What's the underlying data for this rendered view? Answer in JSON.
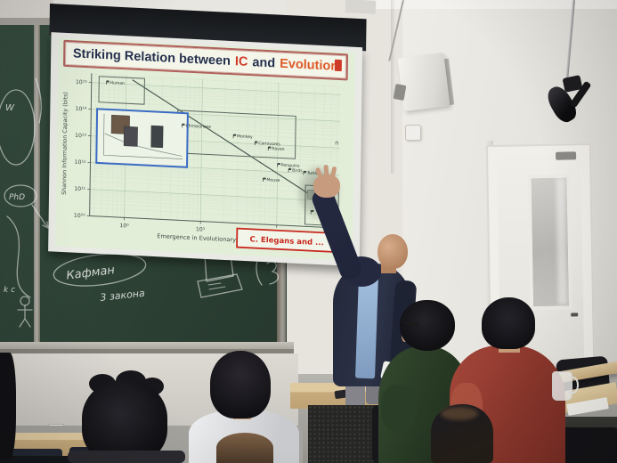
{
  "slide": {
    "title_part1": "Striking Relation between",
    "title_ic": "IC",
    "title_and": "and",
    "title_evolution": "Evolution"
  },
  "chalkboard": {
    "letter_w": "W",
    "phd": "PhD",
    "letters_kc": "k c",
    "circled_name": "Кафман",
    "note_line": "3 закона"
  },
  "colors": {
    "title_text": "#25304d",
    "title_ic": "#cf3a27",
    "title_evolution": "#dd5a28",
    "banner_border": "#b0615c",
    "banner_bg": "#f4f6ea",
    "slide_bg": "#e3eed9",
    "inset_border": "#3a6bc4",
    "caption_red": "#c8281e",
    "chalkboard_green": "#33493c"
  },
  "chart_data": {
    "type": "scatter",
    "title": "Striking Relation between IC and Evolution",
    "xlabel": "Emergence in Evolutionary Time (MYA)",
    "ylabel": "Shannon Information Capacity (bits)",
    "x_scale": "log",
    "y_scale": "log",
    "xlim": [
      0.35,
      650
    ],
    "ylim": [
      10000000000.0,
      2200000000000000.0
    ],
    "grid": true,
    "x_ticks": [
      {
        "v": 1,
        "label": "10⁰"
      },
      {
        "v": 10,
        "label": "10¹"
      },
      {
        "v": 100,
        "label": "10²"
      }
    ],
    "y_ticks": [
      {
        "v": 10000000000.0,
        "label": "10¹⁰"
      },
      {
        "v": 100000000000.0,
        "label": "10¹¹"
      },
      {
        "v": 1000000000000.0,
        "label": "10¹²"
      },
      {
        "v": 10000000000000.0,
        "label": "10¹³"
      },
      {
        "v": 100000000000000.0,
        "label": "10¹⁴"
      },
      {
        "v": 1000000000000000.0,
        "label": "10¹⁵"
      }
    ],
    "points": [
      {
        "label": "Human",
        "x": 0.55,
        "y": 900000000000000.0
      },
      {
        "label": "Chimpanzee",
        "x": 5.5,
        "y": 30000000000000.0
      },
      {
        "label": "Monkey",
        "x": 26,
        "y": 15000000000000.0
      },
      {
        "label": "Carnivores",
        "x": 50,
        "y": 9000000000000.0
      },
      {
        "label": "Raven",
        "x": 75,
        "y": 6000000000000.0
      },
      {
        "label": "Penguins",
        "x": 100,
        "y": 1500000000000.0
      },
      {
        "label": "Birds",
        "x": 140,
        "y": 1000000000000.0
      },
      {
        "label": "Turtle",
        "x": 220,
        "y": 850000000000.0
      },
      {
        "label": "Mouse",
        "x": 65,
        "y": 400000000000.0
      },
      {
        "label": "C. elegans",
        "x": 280,
        "y": 30000000000.0,
        "label_hidden": true
      }
    ],
    "trend_line": {
      "from": [
        1.2,
        1500000000000000.0
      ],
      "to": [
        440,
        70000000000.0
      ]
    },
    "boxes": [
      {
        "x0": 0.44,
        "x1": 1.74,
        "y0": 190000000000000.0,
        "y1": 1750000000000000.0
      },
      {
        "x0": 4.8,
        "x1": 170,
        "y0": 3300000000000.0,
        "y1": 130000000000000.0
      },
      {
        "x0": 235,
        "x1": 640,
        "y0": 12000000000.0,
        "y1": 350000000000.0
      }
    ],
    "inset": {
      "x0": 0.42,
      "x1": 6.5,
      "y0": 1000000000000.0,
      "y1": 105000000000000.0,
      "border_color": "#3a6bc4"
    },
    "image_marks": [
      {
        "x": 300,
        "y": 160000000000.0,
        "w": 14,
        "h": 10
      }
    ],
    "annotations": [
      {
        "text": "n",
        "x": 560,
        "y": 13000000000000.0
      }
    ],
    "caption": {
      "text": "C. Elegans and ...",
      "color": "#c8281e"
    },
    "legend": null
  }
}
